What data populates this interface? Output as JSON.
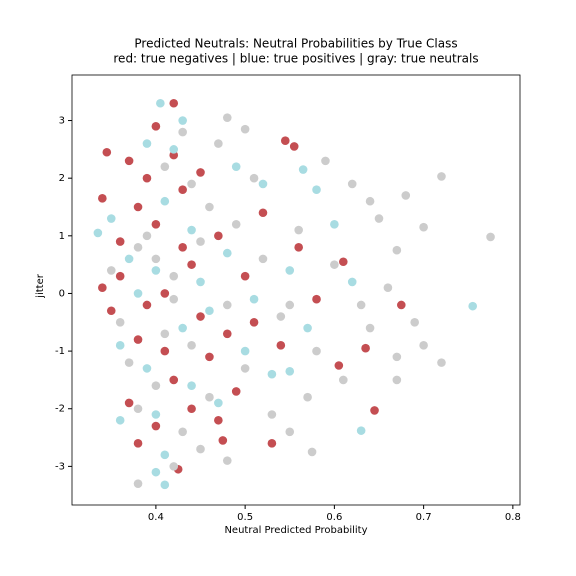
{
  "chart_data": {
    "type": "scatter",
    "title": "Predicted Neutrals: Neutral Probabilities by True Class",
    "subtitle": "red: true negatives | blue: true positives | gray: true neutrals",
    "xlabel": "Neutral Predicted Probability",
    "ylabel": "jitter",
    "xlim": [
      0.306,
      0.808
    ],
    "xticks": [
      0.4,
      0.5,
      0.6,
      0.7,
      0.8
    ],
    "ylim": [
      -3.67,
      3.79
    ],
    "yticks": [
      -3,
      -2,
      -1,
      0,
      1,
      2,
      3
    ],
    "series": [
      {
        "color": "#c44e52",
        "x": [
          0.42,
          0.645,
          0.545,
          0.555,
          0.675,
          0.635,
          0.605,
          0.61,
          0.53,
          0.425,
          0.475,
          0.34,
          0.345,
          0.36,
          0.38,
          0.4,
          0.42,
          0.44,
          0.37,
          0.39,
          0.41,
          0.43,
          0.45,
          0.35,
          0.47,
          0.46,
          0.38,
          0.4,
          0.42,
          0.44,
          0.36,
          0.48,
          0.5,
          0.52,
          0.49,
          0.39,
          0.41,
          0.43,
          0.37,
          0.45,
          0.34,
          0.51,
          0.56,
          0.58,
          0.4,
          0.38,
          0.47,
          0.54
        ],
        "values": [
          3.3,
          -2.03,
          2.65,
          2.55,
          -0.2,
          -0.95,
          -1.25,
          0.55,
          -2.6,
          -3.05,
          -2.55,
          1.65,
          2.45,
          0.3,
          -0.8,
          1.2,
          -1.5,
          0.5,
          -1.9,
          2.0,
          0.0,
          1.8,
          -0.4,
          -0.3,
          1.0,
          -1.1,
          1.5,
          -2.3,
          2.4,
          -2.0,
          0.9,
          -0.7,
          0.3,
          1.4,
          -1.7,
          -0.2,
          -1.0,
          0.8,
          2.3,
          2.1,
          0.1,
          -0.5,
          0.8,
          -0.1,
          2.9,
          -2.6,
          -2.2,
          -0.9
        ]
      },
      {
        "color": "#a8dce2",
        "x": [
          0.755,
          0.63,
          0.405,
          0.4,
          0.41,
          0.335,
          0.565,
          0.55,
          0.37,
          0.39,
          0.41,
          0.43,
          0.45,
          0.47,
          0.42,
          0.36,
          0.44,
          0.4,
          0.48,
          0.5,
          0.52,
          0.38,
          0.46,
          0.35,
          0.55,
          0.57,
          0.6,
          0.62,
          0.39,
          0.41,
          0.49,
          0.53,
          0.36,
          0.44,
          0.58,
          0.43,
          0.51,
          0.4
        ],
        "values": [
          -0.22,
          -2.38,
          3.3,
          -3.1,
          -3.32,
          1.05,
          2.15,
          -1.35,
          0.6,
          -1.3,
          1.6,
          -0.6,
          0.2,
          -1.9,
          2.5,
          -0.9,
          1.1,
          -2.1,
          0.7,
          -1.0,
          1.9,
          0.0,
          -0.3,
          1.3,
          0.4,
          -0.6,
          1.2,
          0.2,
          2.6,
          -2.8,
          2.2,
          -1.4,
          -2.2,
          -1.6,
          1.8,
          3.0,
          -0.1,
          0.4
        ]
      },
      {
        "color": "#cccccc",
        "x": [
          0.775,
          0.72,
          0.72,
          0.69,
          0.5,
          0.38,
          0.67,
          0.67,
          0.7,
          0.64,
          0.575,
          0.55,
          0.48,
          0.36,
          0.38,
          0.4,
          0.42,
          0.44,
          0.46,
          0.48,
          0.43,
          0.41,
          0.39,
          0.37,
          0.45,
          0.47,
          0.5,
          0.52,
          0.54,
          0.56,
          0.58,
          0.6,
          0.62,
          0.64,
          0.66,
          0.68,
          0.7,
          0.35,
          0.42,
          0.44,
          0.46,
          0.4,
          0.38,
          0.43,
          0.49,
          0.51,
          0.53,
          0.57,
          0.59,
          0.61,
          0.63,
          0.65,
          0.42,
          0.45,
          0.41,
          0.55,
          0.48,
          0.67
        ],
        "values": [
          0.98,
          2.03,
          -1.2,
          -0.5,
          2.85,
          -3.3,
          -1.5,
          0.75,
          1.15,
          1.6,
          -2.75,
          -2.4,
          3.05,
          -0.5,
          0.8,
          -1.6,
          0.3,
          -0.9,
          1.5,
          -0.2,
          -2.4,
          2.2,
          1.0,
          -1.2,
          -2.7,
          2.6,
          -1.3,
          0.6,
          -0.4,
          1.1,
          -1.0,
          0.5,
          1.9,
          -0.6,
          0.1,
          1.7,
          -0.9,
          0.4,
          -0.1,
          1.9,
          -1.8,
          0.6,
          -2.0,
          2.8,
          1.2,
          2.0,
          -2.1,
          -1.8,
          2.3,
          -1.5,
          -0.2,
          1.3,
          -3.0,
          0.9,
          -0.7,
          -0.2,
          -2.9,
          -1.1
        ]
      }
    ]
  }
}
